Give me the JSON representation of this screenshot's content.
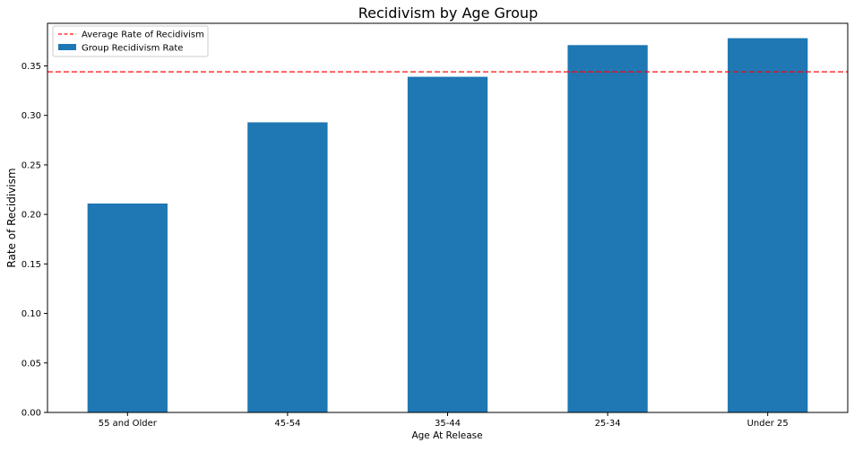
{
  "chart_data": {
    "type": "bar",
    "title": "Recidivism by Age Group",
    "xlabel": "Age At Release",
    "ylabel": "Rate of Recidivism",
    "categories": [
      "55 and Older",
      "45-54",
      "35-44",
      "25-34",
      "Under 25"
    ],
    "series": [
      {
        "name": "Group Recidivism Rate",
        "values": [
          0.211,
          0.293,
          0.339,
          0.371,
          0.378
        ],
        "color": "#1f77b4"
      }
    ],
    "reference_line": {
      "name": "Average Rate of Recidivism",
      "value": 0.344,
      "color": "#ff0000",
      "style": "dashed"
    },
    "ylim": [
      0,
      0.393
    ],
    "yticks": [
      0.0,
      0.05,
      0.1,
      0.15,
      0.2,
      0.25,
      0.3,
      0.35
    ],
    "ytick_labels": [
      "0.00",
      "0.05",
      "0.10",
      "0.15",
      "0.20",
      "0.25",
      "0.30",
      "0.35"
    ],
    "grid": false,
    "legend_position": "upper-left"
  }
}
